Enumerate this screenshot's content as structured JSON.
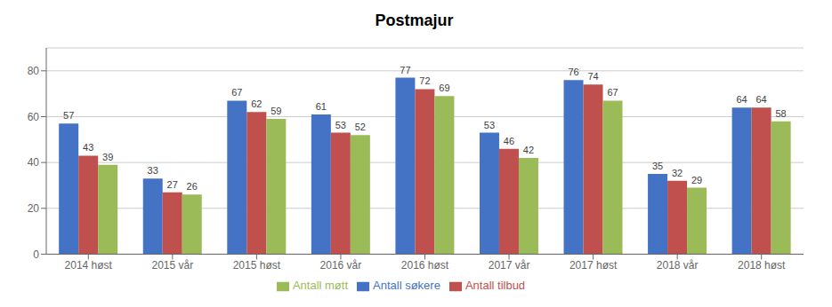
{
  "chart_data": {
    "type": "bar",
    "title": "Postmajur",
    "categories": [
      "2014 høst",
      "2015 vår",
      "2015 høst",
      "2016 vår",
      "2016 høst",
      "2017 vår",
      "2017 høst",
      "2018 vår",
      "2018 høst"
    ],
    "series": [
      {
        "name": "Antall søkere",
        "color": "#4472C4",
        "values": [
          57,
          33,
          67,
          61,
          77,
          53,
          76,
          35,
          64
        ]
      },
      {
        "name": "Antall tilbud",
        "color": "#C0504D",
        "values": [
          43,
          27,
          62,
          53,
          72,
          46,
          74,
          32,
          64
        ]
      },
      {
        "name": "Antall møtt",
        "color": "#9BBB59",
        "values": [
          39,
          26,
          59,
          52,
          69,
          42,
          67,
          29,
          58
        ]
      }
    ],
    "ylim": [
      0,
      90
    ],
    "yticks": [
      0,
      20,
      40,
      60,
      80
    ],
    "grid": true,
    "legend": "bottom",
    "data_labels": true
  }
}
